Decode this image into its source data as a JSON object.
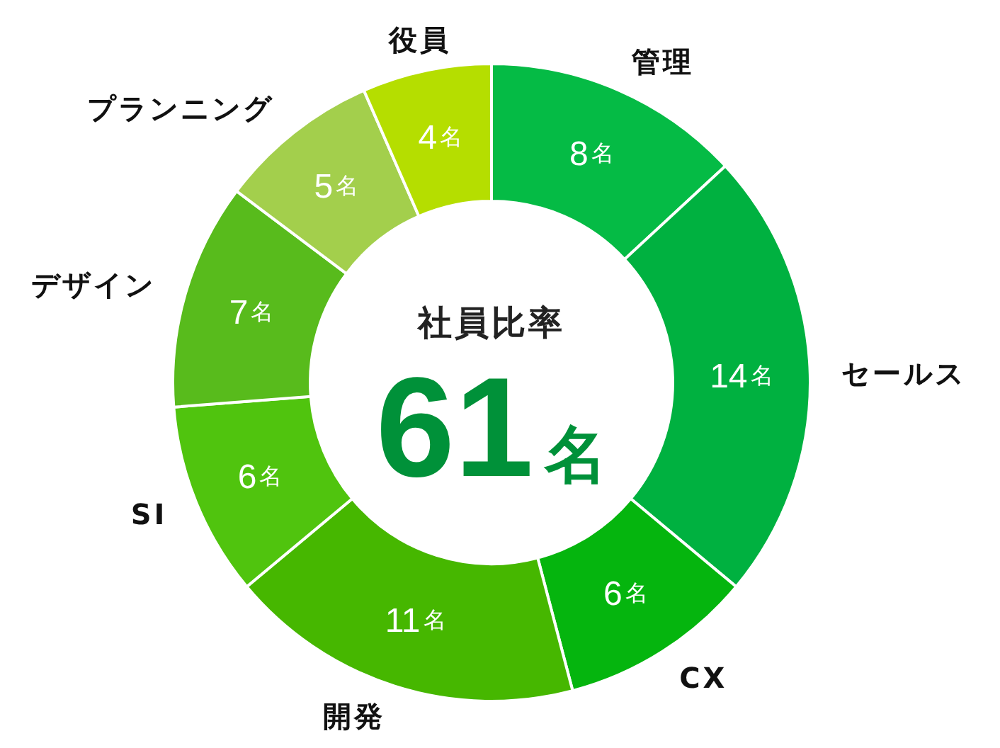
{
  "chart_data": {
    "type": "donut",
    "title": "社員比率",
    "categories": [
      "管理",
      "セールス",
      "CX",
      "開発",
      "SI",
      "デザイン",
      "プランニング",
      "役員"
    ],
    "values": [
      8,
      14,
      6,
      11,
      6,
      7,
      5,
      4
    ],
    "colors": [
      "#05bb45",
      "#00b140",
      "#05b50e",
      "#46b700",
      "#50c40e",
      "#58bb1c",
      "#a3cf4c",
      "#b5de00"
    ],
    "value_labels": [
      "8名",
      "14名",
      "6名",
      "11名",
      "6名",
      "7名",
      "5名",
      "4名"
    ],
    "annotations": [
      "61名"
    ]
  }
}
